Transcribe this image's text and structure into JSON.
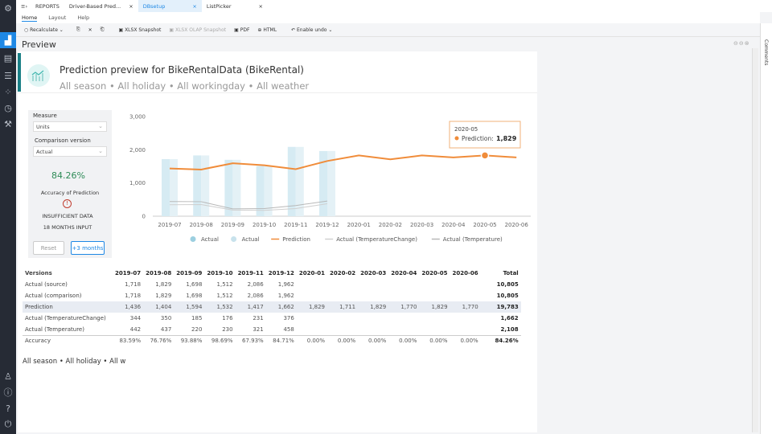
{
  "sidebar": {
    "items": [
      {
        "icon": "settings-gear-icon"
      },
      {
        "icon": "reports-chart-icon",
        "active": true
      },
      {
        "icon": "dashboard-icon"
      },
      {
        "icon": "list-icon"
      },
      {
        "icon": "data-grid-icon"
      },
      {
        "icon": "timer-icon"
      },
      {
        "icon": "wrench-icon"
      }
    ],
    "bottom": [
      {
        "icon": "user-icon"
      },
      {
        "icon": "info-icon"
      },
      {
        "icon": "help-icon"
      },
      {
        "icon": "power-icon"
      }
    ]
  },
  "tabbar": {
    "app": "REPORTS",
    "tabs": [
      {
        "label": "Driver-Based Pred..."
      },
      {
        "label": "DBsetup",
        "selected": true
      },
      {
        "label": "ListPicker"
      }
    ]
  },
  "menu": [
    "Home",
    "Layout",
    "Help"
  ],
  "toolbar": {
    "recalculate": "Recalculate",
    "xlsx": "XLSX Snapshot",
    "olap": "XLSX OLAP Snapshot",
    "pdf": "PDF",
    "html": "HTML",
    "undo": "Enable undo"
  },
  "preview_title": "Preview",
  "header": {
    "title": "Prediction preview for BikeRentalData (BikeRental)",
    "subtitle": "All season • All holiday • All workingday • All weather"
  },
  "controls": {
    "measure_label": "Measure",
    "measure_value": "Units",
    "comparison_label": "Comparison version",
    "comparison_value": "Actual",
    "accuracy": "84.26%",
    "accuracy_label": "Accuracy of Prediction",
    "warning1": "INSUFFICIENT DATA",
    "warning2": "18 MONTHS INPUT",
    "reset": "Reset",
    "plus3": "+3 months",
    "accent": "#2e8b57"
  },
  "chart_data": {
    "type": "bar+line",
    "categories": [
      "2019-07",
      "2019-08",
      "2019-09",
      "2019-10",
      "2019-11",
      "2019-12",
      "2020-01",
      "2020-02",
      "2020-03",
      "2020-04",
      "2020-05",
      "2020-06"
    ],
    "ylim": [
      0,
      3000
    ],
    "yticks": [
      "0",
      "1,000",
      "2,000",
      "3,000"
    ],
    "series": [
      {
        "name": "Actual",
        "kind": "bar",
        "color": "#d6ebf3",
        "values": [
          1718,
          1829,
          1698,
          1512,
          2086,
          1962,
          null,
          null,
          null,
          null,
          null,
          null
        ]
      },
      {
        "name": "Actual",
        "kind": "bar",
        "color": "#e4f1f6",
        "values": [
          1718,
          1829,
          1698,
          1512,
          2086,
          1962,
          null,
          null,
          null,
          null,
          null,
          null
        ]
      },
      {
        "name": "Prediction",
        "kind": "line",
        "color": "#f08c3a",
        "values": [
          1436,
          1404,
          1594,
          1532,
          1417,
          1662,
          1829,
          1711,
          1829,
          1770,
          1829,
          1770
        ]
      },
      {
        "name": "Actual (TemperatureChange)",
        "kind": "line",
        "color": "#d0d0d0",
        "values": [
          344,
          350,
          185,
          176,
          231,
          376,
          null,
          null,
          null,
          null,
          null,
          null
        ]
      },
      {
        "name": "Actual (Temperature)",
        "kind": "line",
        "color": "#b8b8b8",
        "values": [
          442,
          437,
          220,
          230,
          321,
          458,
          null,
          null,
          null,
          null,
          null,
          null
        ]
      }
    ],
    "tooltip": {
      "title": "2020-05",
      "label": "Prediction:",
      "value": "1,829"
    }
  },
  "table": {
    "headers": [
      "Versions",
      "2019-07",
      "2019-08",
      "2019-09",
      "2019-10",
      "2019-11",
      "2019-12",
      "2020-01",
      "2020-02",
      "2020-03",
      "2020-04",
      "2020-05",
      "2020-06",
      "Total"
    ],
    "rows": [
      [
        "Actual (source)",
        "1,718",
        "1,829",
        "1,698",
        "1,512",
        "2,086",
        "1,962",
        "",
        "",
        "",
        "",
        "",
        "",
        "10,805"
      ],
      [
        "Actual (comparison)",
        "1,718",
        "1,829",
        "1,698",
        "1,512",
        "2,086",
        "1,962",
        "",
        "",
        "",
        "",
        "",
        "",
        "10,805"
      ],
      [
        "Prediction",
        "1,436",
        "1,404",
        "1,594",
        "1,532",
        "1,417",
        "1,662",
        "1,829",
        "1,711",
        "1,829",
        "1,770",
        "1,829",
        "1,770",
        "19,783"
      ],
      [
        "Actual (TemperatureChange)",
        "344",
        "350",
        "185",
        "176",
        "231",
        "376",
        "",
        "",
        "",
        "",
        "",
        "",
        "1,662"
      ],
      [
        "Actual (Temperature)",
        "442",
        "437",
        "220",
        "230",
        "321",
        "458",
        "",
        "",
        "",
        "",
        "",
        "",
        "2,108"
      ],
      [
        "Accuracy",
        "83.59%",
        "76.76%",
        "93.88%",
        "98.69%",
        "67.93%",
        "84.71%",
        "0.00%",
        "0.00%",
        "0.00%",
        "0.00%",
        "0.00%",
        "0.00%",
        "84.26%"
      ]
    ]
  },
  "footer_text": "All season • All holiday • All w",
  "comments_label": "Comments"
}
